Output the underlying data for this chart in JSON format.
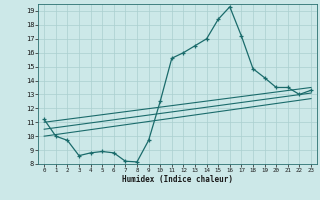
{
  "xlabel": "Humidex (Indice chaleur)",
  "bg_color": "#cce8e8",
  "grid_color": "#aacfcf",
  "line_color": "#1a6b6b",
  "xlim": [
    -0.5,
    23.5
  ],
  "ylim": [
    8,
    19.5
  ],
  "xticks": [
    0,
    1,
    2,
    3,
    4,
    5,
    6,
    7,
    8,
    9,
    10,
    11,
    12,
    13,
    14,
    15,
    16,
    17,
    18,
    19,
    20,
    21,
    22,
    23
  ],
  "yticks": [
    8,
    9,
    10,
    11,
    12,
    13,
    14,
    15,
    16,
    17,
    18,
    19
  ],
  "line1_x": [
    0,
    1,
    2,
    3,
    4,
    5,
    6,
    7,
    8,
    9,
    10,
    11,
    12,
    13,
    14,
    15,
    16,
    17,
    18,
    19,
    20,
    21,
    22,
    23
  ],
  "line1_y": [
    11.2,
    10.0,
    9.7,
    8.6,
    8.8,
    8.9,
    8.8,
    8.2,
    8.15,
    9.7,
    12.5,
    15.6,
    16.0,
    16.5,
    17.0,
    18.4,
    19.3,
    17.2,
    14.85,
    14.2,
    13.5,
    13.5,
    13.0,
    13.3
  ],
  "line2_x": [
    0,
    23
  ],
  "line2_y": [
    11.0,
    13.5
  ],
  "line3_x": [
    0,
    23
  ],
  "line3_y": [
    10.5,
    13.1
  ],
  "line4_x": [
    0,
    23
  ],
  "line4_y": [
    10.0,
    12.7
  ]
}
